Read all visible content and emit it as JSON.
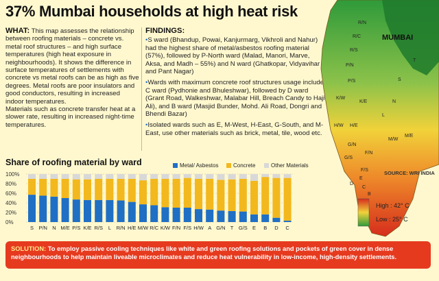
{
  "headline": "37% Mumbai households at high heat risk",
  "what": {
    "label": "WHAT:",
    "body": "This map assesses the relationship between roofing materials – concrete vs. metal roof structures – and high surface temperatures (high heat exposure in neighbourhoods). It shows the difference in surface temperatures of settlements with concrete vs metal roofs can be as high as five degrees. Metal roofs are poor insulators and good conductors, resulting in increased indoor temperatures.",
    "body2": "Materials such as concrete transfer heat at a slower rate, resulting in increased night-time temperatures."
  },
  "findings": {
    "label": "FINDINGS:",
    "items": [
      "S ward (Bhandup, Powai, Kanjurmarg, Vikhroli and Nahur) had the highest share of metal/asbestos roofing material (57%), followed by P-North ward (Malad, Manori, Marve, Aksa, and Madh – 55%) and N ward (Ghatkopar, Vidyavihar and Pant Nagar)",
      "Wards with maximum concrete roof structures usage include C ward (Pydhonie and Bhuleshwar), followed by D ward (Grant Road, Walkeshwar, Malabar Hill, Breach Candy to Haji Ali), and B ward (Masjid Bunder, Mohd. Ali Road, Dongri and Bhendi Bazar)",
      "Isolated wards such as E, M-West, H-East, G-South, and M-East, use other materials such as brick, metal, tile, wood etc."
    ]
  },
  "map": {
    "city_label": "MUMBAI",
    "ward_labels": [
      "R/N",
      "R/C",
      "R/S",
      "P/N",
      "P/S",
      "K/W",
      "K/E",
      "H/W",
      "H/E",
      "G/N",
      "G/S",
      "F/N",
      "F/S",
      "A",
      "B",
      "C",
      "D",
      "E",
      "L",
      "M/E",
      "M/W",
      "N",
      "S",
      "T"
    ],
    "legend_high": "High : 42° C",
    "legend_low": "Low : 25° C",
    "source": "SOURCE: WRI INDIA",
    "colors": {
      "high": "#d62d1c",
      "mid": "#f1d23a",
      "low": "#2f9a3a"
    }
  },
  "chart_data": {
    "type": "bar",
    "title": "Share of roofing material by ward",
    "categories": [
      "S",
      "P/N",
      "N",
      "M/E",
      "P/S",
      "K/E",
      "R/S",
      "L",
      "R/N",
      "H/E",
      "M/W",
      "R/C",
      "K/W",
      "F/N",
      "F/S",
      "H/W",
      "A",
      "G/N",
      "T",
      "G/S",
      "E",
      "B",
      "D",
      "C"
    ],
    "series": [
      {
        "name": "Metal/ Asbestos",
        "color": "#1f6fc5",
        "values": [
          57,
          55,
          53,
          50,
          47,
          46,
          46,
          46,
          45,
          42,
          37,
          35,
          31,
          30,
          30,
          27,
          26,
          24,
          23,
          22,
          16,
          16,
          9,
          3
        ]
      },
      {
        "name": "Concrete",
        "color": "#f2b81d",
        "values": [
          33,
          35,
          37,
          40,
          42,
          43,
          44,
          44,
          45,
          48,
          50,
          55,
          59,
          60,
          62,
          63,
          64,
          64,
          66,
          68,
          70,
          78,
          83,
          89
        ]
      },
      {
        "name": "Other Materials",
        "color": "#d8d8d8",
        "values": [
          10,
          10,
          10,
          10,
          11,
          11,
          10,
          10,
          10,
          10,
          13,
          10,
          10,
          10,
          8,
          10,
          10,
          12,
          11,
          10,
          14,
          6,
          8,
          8
        ]
      }
    ],
    "yticks": [
      "100%",
      "80%",
      "60%",
      "40%",
      "20%",
      "0%"
    ],
    "ylim": [
      0,
      100
    ],
    "stacked": true,
    "legend_position": "top-right"
  },
  "solution": {
    "label": "SOLUTION:",
    "text": "To employ passive cooling techniques like white and green roofing solutions and pockets of green cover in dense neighbourhoods to help maintain liveable microclimates and reduce heat vulnerability in low-income, high-density settlements."
  }
}
